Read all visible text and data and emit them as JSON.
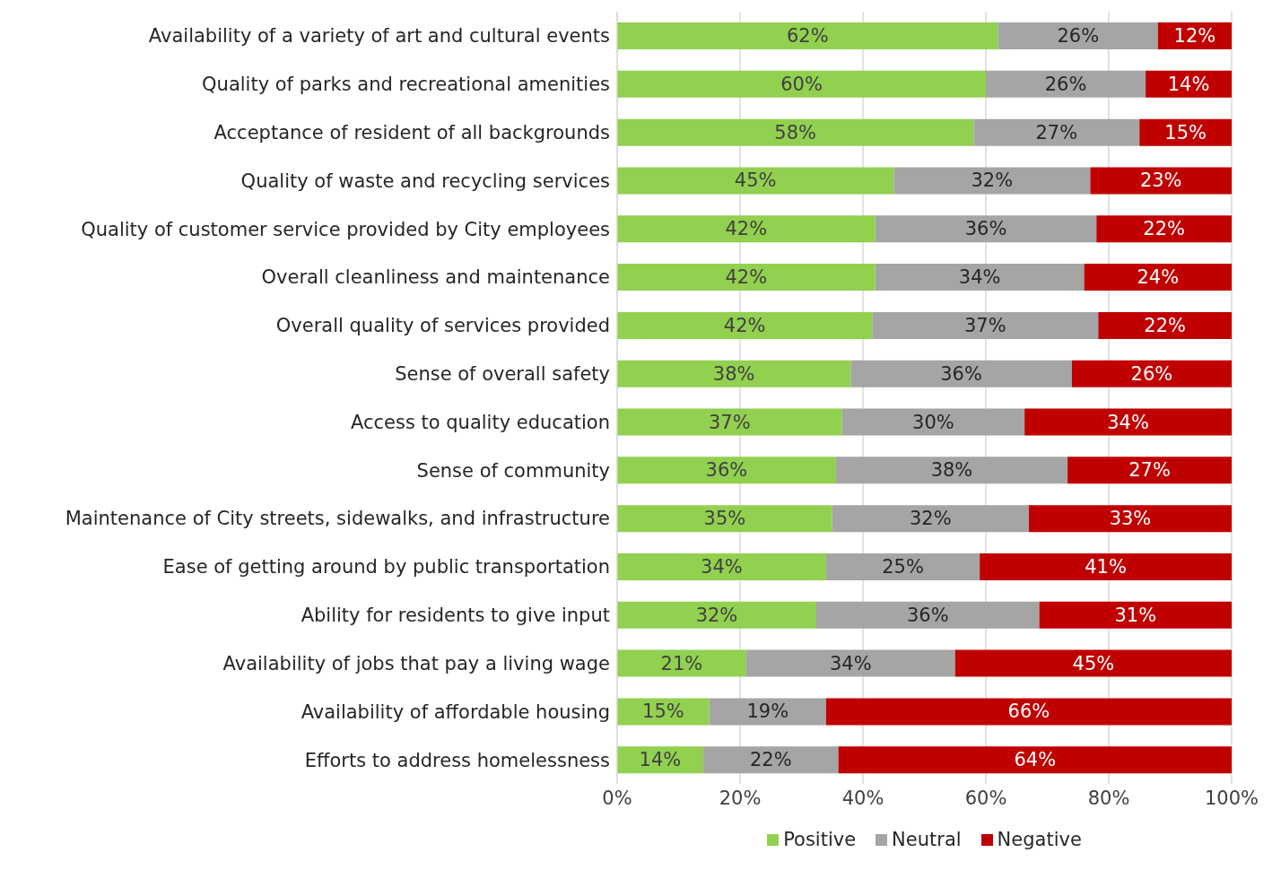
{
  "chart_data": {
    "type": "bar",
    "orientation": "horizontal",
    "stacked": true,
    "categories": [
      "Availability of a variety of art and cultural events",
      "Quality of parks and recreational amenities",
      "Acceptance of resident of all backgrounds",
      "Quality of waste and recycling services",
      "Quality of customer service provided by City employees",
      "Overall cleanliness and maintenance",
      "Overall quality of services provided",
      "Sense of overall safety",
      "Access to quality education",
      "Sense of community",
      "Maintenance of City streets, sidewalks, and infrastructure",
      "Ease of getting around by public transportation",
      "Ability for residents to give input",
      "Availability of jobs that pay a living wage",
      "Availability of affordable housing",
      "Efforts to address homelessness"
    ],
    "series": [
      {
        "name": "Positive",
        "color": "#92d050",
        "values": [
          62,
          60,
          58,
          45,
          42,
          42,
          41.5,
          38,
          36.6,
          35.6,
          35,
          34,
          32.4,
          21,
          15,
          14
        ],
        "value_labels": [
          "62%",
          "60%",
          "58%",
          "45%",
          "42%",
          "42%",
          "42%",
          "38%",
          "37%",
          "36%",
          "35%",
          "34%",
          "32%",
          "21%",
          "15%",
          "14%"
        ]
      },
      {
        "name": "Neutral",
        "color": "#a5a5a5",
        "values": [
          26,
          26,
          27,
          32,
          36,
          34,
          36.8,
          36,
          29.7,
          37.7,
          32,
          25,
          36.3,
          34,
          19,
          22
        ],
        "value_labels": [
          "26%",
          "26%",
          "27%",
          "32%",
          "36%",
          "34%",
          "37%",
          "36%",
          "30%",
          "38%",
          "32%",
          "25%",
          "36%",
          "34%",
          "19%",
          "22%"
        ]
      },
      {
        "name": "Negative",
        "color": "#c00000",
        "values": [
          12,
          14,
          15,
          23,
          22,
          24,
          21.7,
          26,
          33.7,
          26.7,
          33,
          41,
          31.3,
          45,
          66,
          64
        ],
        "value_labels": [
          "12%",
          "14%",
          "15%",
          "23%",
          "22%",
          "24%",
          "22%",
          "26%",
          "34%",
          "27%",
          "33%",
          "41%",
          "31%",
          "45%",
          "66%",
          "64%"
        ]
      }
    ],
    "xlim": [
      0,
      100
    ],
    "xticks": [
      {
        "value": 0,
        "label": "0%"
      },
      {
        "value": 20,
        "label": "20%"
      },
      {
        "value": 40,
        "label": "40%"
      },
      {
        "value": 60,
        "label": "60%"
      },
      {
        "value": 80,
        "label": "80%"
      },
      {
        "value": 100,
        "label": "100%"
      }
    ],
    "grid": "x",
    "legend": "bottom"
  }
}
